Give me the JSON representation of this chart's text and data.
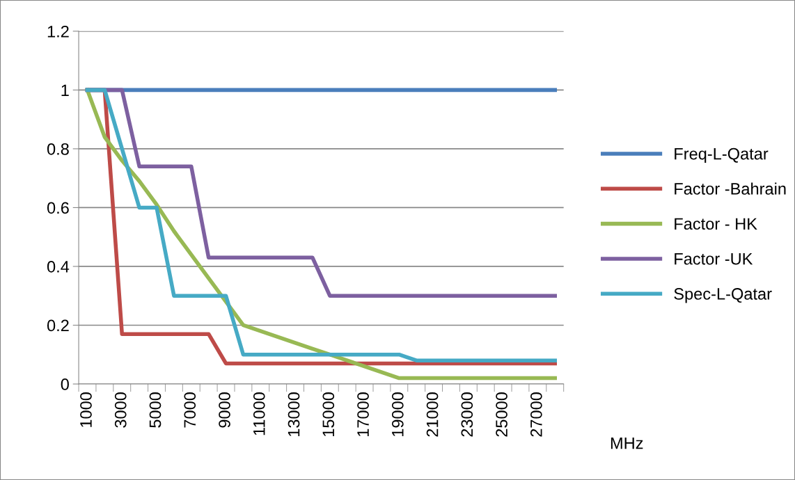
{
  "chart_data": {
    "type": "line",
    "xlabel": "MHz",
    "categories": [
      "1000",
      null,
      "3000",
      null,
      "5000",
      null,
      "7000",
      null,
      "9000",
      null,
      "11000",
      null,
      "13000",
      null,
      "15000",
      null,
      "17000",
      null,
      "19000",
      null,
      "21000",
      null,
      "23000",
      null,
      "25000",
      null,
      "27000",
      null
    ],
    "series": [
      {
        "name": "Freq-L-Qatar",
        "color": "#4a7ebb",
        "values": [
          1,
          1,
          1,
          1,
          1,
          1,
          1,
          1,
          1,
          1,
          1,
          1,
          1,
          1,
          1,
          1,
          1,
          1,
          1,
          1,
          1,
          1,
          1,
          1,
          1,
          1,
          1,
          1
        ]
      },
      {
        "name": "Factor -Bahrain",
        "color": "#be4b48",
        "values": [
          1,
          1,
          0.17,
          0.17,
          0.17,
          0.17,
          0.17,
          0.17,
          0.07,
          0.07,
          0.07,
          0.07,
          0.07,
          0.07,
          0.07,
          0.07,
          0.07,
          0.07,
          0.07,
          0.07,
          0.07,
          0.07,
          0.07,
          0.07,
          0.07,
          0.07,
          0.07,
          0.07
        ]
      },
      {
        "name": "Factor - HK",
        "color": "#98b954",
        "values": [
          1,
          0.84,
          0.76,
          0.69,
          0.61,
          0.52,
          0.44,
          0.36,
          0.28,
          0.2,
          0.18,
          0.16,
          0.14,
          0.12,
          0.1,
          0.08,
          0.06,
          0.04,
          0.02,
          0.02,
          0.02,
          0.02,
          0.02,
          0.02,
          0.02,
          0.02,
          0.02,
          0.02
        ]
      },
      {
        "name": "Factor -UK",
        "color": "#7d60a0",
        "values": [
          1,
          1,
          1,
          0.74,
          0.74,
          0.74,
          0.74,
          0.43,
          0.43,
          0.43,
          0.43,
          0.43,
          0.43,
          0.43,
          0.3,
          0.3,
          0.3,
          0.3,
          0.3,
          0.3,
          0.3,
          0.3,
          0.3,
          0.3,
          0.3,
          0.3,
          0.3,
          0.3
        ]
      },
      {
        "name": "Spec-L-Qatar",
        "color": "#46aac5",
        "values": [
          1,
          1,
          0.8,
          0.6,
          0.6,
          0.3,
          0.3,
          0.3,
          0.3,
          0.1,
          0.1,
          0.1,
          0.1,
          0.1,
          0.1,
          0.1,
          0.1,
          0.1,
          0.1,
          0.08,
          0.08,
          0.08,
          0.08,
          0.08,
          0.08,
          0.08,
          0.08,
          0.08
        ]
      }
    ],
    "ylim": [
      0,
      1.2
    ],
    "yticks": [
      0,
      0.2,
      0.4,
      0.6,
      0.8,
      1,
      1.2
    ],
    "grid": "y",
    "legend": "right",
    "marker": "none",
    "line_style": "solid"
  }
}
